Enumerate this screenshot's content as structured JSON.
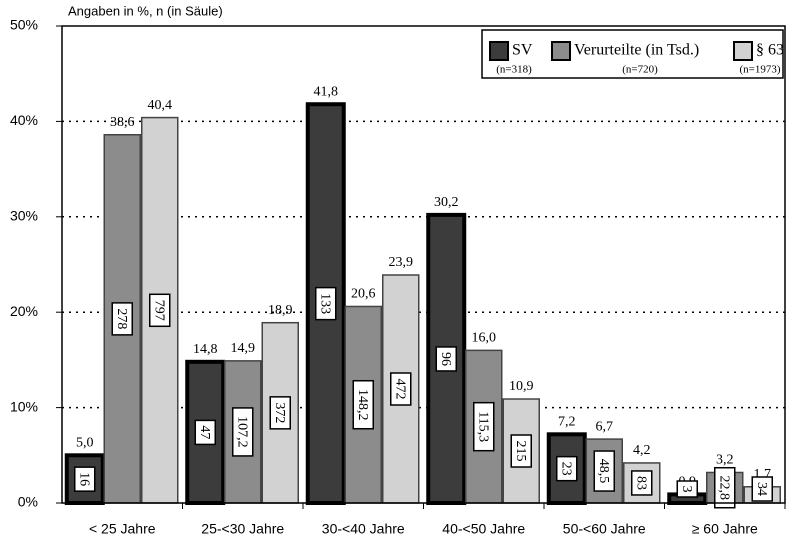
{
  "chart_data": {
    "type": "bar",
    "y_axis_label": "Angaben in %, n (in Säule)",
    "categories": [
      "< 25 Jahre",
      "25-<30 Jahre",
      "30-<40 Jahre",
      "40-<50 Jahre",
      "50-<60 Jahre",
      "≥ 60 Jahre"
    ],
    "series": [
      {
        "name": "SV",
        "n": "(n=318)",
        "color": "#3c3c3c",
        "values": [
          5.0,
          14.8,
          41.8,
          30.2,
          7.2,
          0.9
        ],
        "value_labels": [
          "5,0",
          "14,8",
          "41,8",
          "30,2",
          "7,2",
          "0,9"
        ],
        "n_labels": [
          "16",
          "47",
          "133",
          "96",
          "23",
          "3"
        ]
      },
      {
        "name": "Verurteilte (in Tsd.)",
        "n": "(n=720)",
        "color": "#8c8c8c",
        "values": [
          38.6,
          14.9,
          20.6,
          16.0,
          6.7,
          3.2
        ],
        "value_labels": [
          "38,6",
          "14,9",
          "20,6",
          "16,0",
          "6,7",
          "3,2"
        ],
        "n_labels": [
          "278",
          "107,2",
          "148,2",
          "115,3",
          "48,5",
          "22,8"
        ]
      },
      {
        "name": "§ 63",
        "n": "(n=1973)",
        "color": "#d2d2d2",
        "values": [
          40.4,
          18.9,
          23.9,
          10.9,
          4.2,
          1.7
        ],
        "value_labels": [
          "40,4",
          "18,9",
          "23,9",
          "10,9",
          "4,2",
          "1,7"
        ],
        "n_labels": [
          "797",
          "372",
          "472",
          "215",
          "83",
          "34"
        ]
      }
    ],
    "ylim": [
      0,
      50
    ],
    "yticks": [
      {
        "value": 0,
        "label": "0%"
      },
      {
        "value": 10,
        "label": "10%"
      },
      {
        "value": 20,
        "label": "20%"
      },
      {
        "value": 30,
        "label": "30%"
      },
      {
        "value": 40,
        "label": "40%"
      },
      {
        "value": 50,
        "label": "50%"
      }
    ],
    "grid": true,
    "legend": "top-right"
  }
}
